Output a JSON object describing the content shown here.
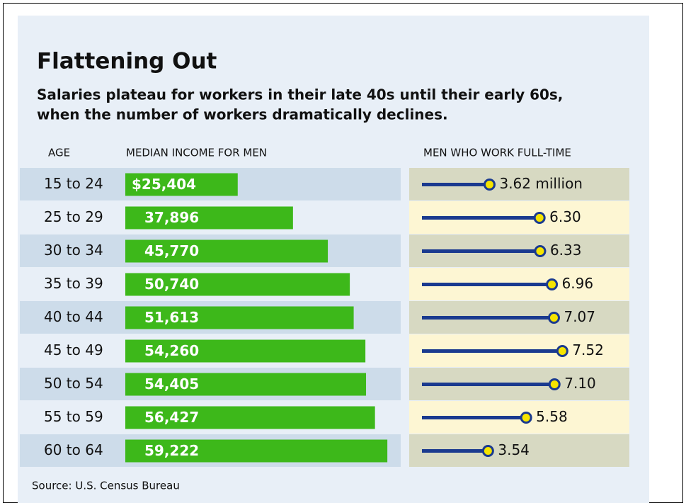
{
  "chart_data": [
    {
      "type": "bar",
      "orientation": "horizontal",
      "title": "Flattening Out",
      "subtitle": [
        "Salaries plateau for workers in their late 40s until their early 60s,",
        "when the number of workers dramatically declines."
      ],
      "category_label": "AGE",
      "x_label": "MEDIAN INCOME FOR MEN",
      "categories": [
        "15 to 24",
        "25 to 29",
        "30 to 34",
        "35 to 39",
        "40 to 44",
        "45 to 49",
        "50 to 54",
        "55 to 59",
        "60 to 64"
      ],
      "values": [
        25404,
        37896,
        45770,
        50740,
        51613,
        54260,
        54405,
        56427,
        59222
      ],
      "value_labels": [
        "$25,404",
        "37,896",
        "45,770",
        "50,740",
        "51,613",
        "54,260",
        "54,405",
        "56,427",
        "59,222"
      ],
      "color": "#3db81a",
      "xlim": [
        0,
        60000
      ],
      "source": "Source: U.S. Census Bureau"
    },
    {
      "type": "lollipop",
      "orientation": "horizontal",
      "x_label": "MEN WHO WORK FULL-TIME",
      "values": [
        3.62,
        6.3,
        6.33,
        6.96,
        7.07,
        7.52,
        7.1,
        5.58,
        3.54
      ],
      "value_labels": [
        "3.62 million",
        "6.30",
        "6.33",
        "6.96",
        "7.07",
        "7.52",
        "7.10",
        "5.58",
        "3.54"
      ],
      "color": "#1a3a8f",
      "marker_color": "#f5e400",
      "xlim": [
        0,
        8
      ]
    }
  ]
}
